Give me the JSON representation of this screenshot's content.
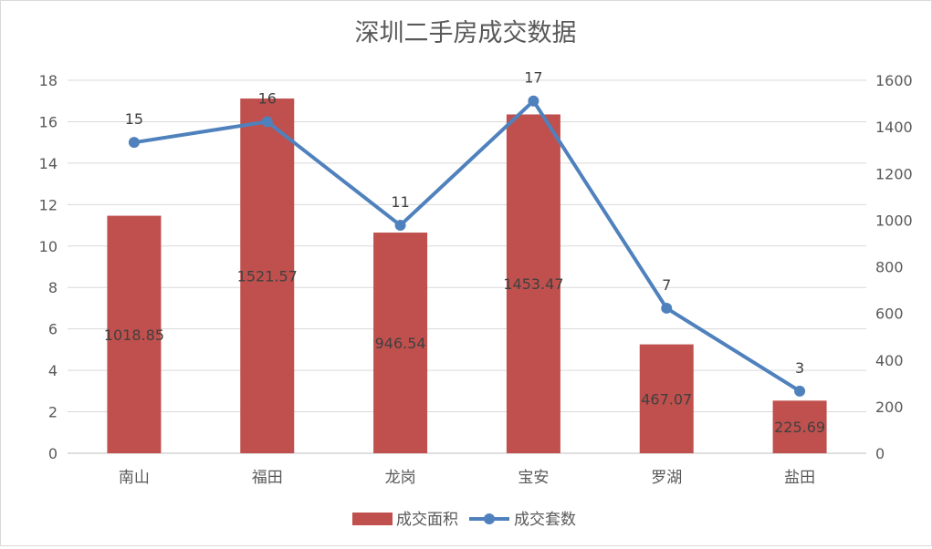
{
  "chart_data": {
    "type": "bar",
    "title": "深圳二手房成交数据",
    "categories": [
      "南山",
      "福田",
      "龙岗",
      "宝安",
      "罗湖",
      "盐田"
    ],
    "series": [
      {
        "name": "成交面积",
        "kind": "bar",
        "axis": "right",
        "color": "#c0504d",
        "values": [
          1018.85,
          1521.57,
          946.54,
          1453.47,
          467.07,
          225.69
        ]
      },
      {
        "name": "成交套数",
        "kind": "line",
        "axis": "left",
        "color": "#4f81bd",
        "values": [
          15,
          16,
          11,
          17,
          7,
          3
        ]
      }
    ],
    "y_left": {
      "min": 0,
      "max": 18,
      "ticks": [
        0,
        2,
        4,
        6,
        8,
        10,
        12,
        14,
        16,
        18
      ]
    },
    "y_right": {
      "min": 0,
      "max": 1600,
      "ticks": [
        0,
        200,
        400,
        600,
        800,
        1000,
        1200,
        1400,
        1600
      ]
    },
    "grid": true,
    "legend_position": "bottom"
  }
}
